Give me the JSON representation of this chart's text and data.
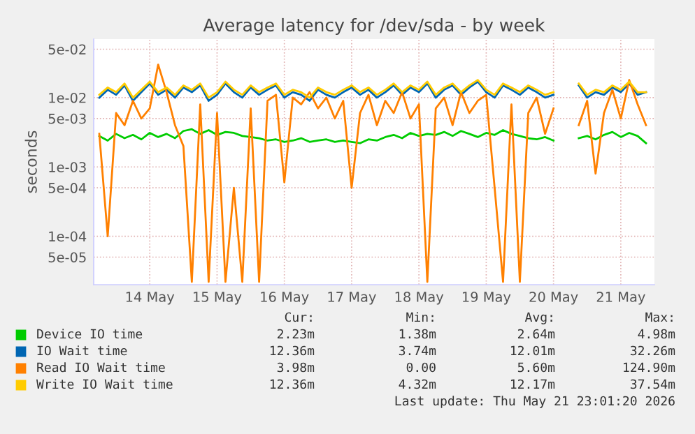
{
  "chart_data": {
    "type": "line",
    "title": "Average latency for /dev/sda - by week",
    "ylabel": "seconds",
    "x": [
      "2026-05-13T18:00",
      "2026-05-13T21:00",
      "2026-05-14T00:00",
      "2026-05-14T03:00",
      "2026-05-14T06:00",
      "2026-05-14T09:00",
      "2026-05-14T12:00",
      "2026-05-14T15:00",
      "2026-05-14T18:00",
      "2026-05-14T21:00",
      "2026-05-15T00:00",
      "2026-05-15T03:00",
      "2026-05-15T06:00",
      "2026-05-15T09:00",
      "2026-05-15T12:00",
      "2026-05-15T15:00",
      "2026-05-15T18:00",
      "2026-05-15T21:00",
      "2026-05-16T00:00",
      "2026-05-16T03:00",
      "2026-05-16T06:00",
      "2026-05-16T09:00",
      "2026-05-16T12:00",
      "2026-05-16T15:00",
      "2026-05-16T18:00",
      "2026-05-16T21:00",
      "2026-05-17T00:00",
      "2026-05-17T03:00",
      "2026-05-17T06:00",
      "2026-05-17T09:00",
      "2026-05-17T12:00",
      "2026-05-17T15:00",
      "2026-05-17T18:00",
      "2026-05-17T21:00",
      "2026-05-18T00:00",
      "2026-05-18T03:00",
      "2026-05-18T06:00",
      "2026-05-18T09:00",
      "2026-05-18T12:00",
      "2026-05-18T15:00",
      "2026-05-18T18:00",
      "2026-05-18T21:00",
      "2026-05-19T00:00",
      "2026-05-19T03:00",
      "2026-05-19T06:00",
      "2026-05-19T09:00",
      "2026-05-19T12:00",
      "2026-05-19T15:00",
      "2026-05-19T18:00",
      "2026-05-19T21:00",
      "2026-05-20T00:00",
      "2026-05-20T03:00",
      "2026-05-20T06:00",
      "2026-05-20T09:00",
      "2026-05-20T12:00",
      "2026-05-20T15:00",
      "2026-05-20T18:00",
      "2026-05-20T21:00",
      "2026-05-21T00:00",
      "2026-05-21T03:00",
      "2026-05-21T06:00",
      "2026-05-21T09:00",
      "2026-05-21T12:00",
      "2026-05-21T15:00",
      "2026-05-21T18:00",
      "2026-05-21T21:00"
    ],
    "series": [
      {
        "name": "Device IO time",
        "color": "#00cc00",
        "values": [
          0.0028,
          0.0024,
          0.003,
          0.0026,
          0.0029,
          0.0025,
          0.0031,
          0.0027,
          0.003,
          0.0026,
          0.0033,
          0.0035,
          0.003,
          0.0034,
          0.0029,
          0.0032,
          0.0031,
          0.0028,
          0.0027,
          0.0026,
          0.0024,
          0.0025,
          0.0023,
          0.0024,
          0.0026,
          0.0023,
          0.0024,
          0.0025,
          0.0023,
          0.0024,
          0.0023,
          0.0022,
          0.0025,
          0.0024,
          0.0027,
          0.0029,
          0.0026,
          0.0031,
          0.0028,
          0.003,
          0.0029,
          0.0032,
          0.0028,
          0.0033,
          0.003,
          0.0027,
          0.0031,
          0.0029,
          0.0034,
          0.003,
          0.0028,
          0.0026,
          0.0025,
          0.0027,
          0.0024,
          null,
          null,
          0.0026,
          0.0028,
          0.0025,
          0.0029,
          0.0032,
          0.0027,
          0.0031,
          0.0028,
          0.0022
        ]
      },
      {
        "name": "IO Wait time",
        "color": "#0066b3",
        "values": [
          0.01,
          0.013,
          0.011,
          0.015,
          0.009,
          0.012,
          0.016,
          0.011,
          0.013,
          0.01,
          0.014,
          0.012,
          0.015,
          0.009,
          0.011,
          0.016,
          0.012,
          0.01,
          0.014,
          0.011,
          0.013,
          0.015,
          0.01,
          0.012,
          0.011,
          0.009,
          0.013,
          0.011,
          0.01,
          0.012,
          0.014,
          0.011,
          0.013,
          0.01,
          0.012,
          0.015,
          0.011,
          0.014,
          0.012,
          0.016,
          0.01,
          0.013,
          0.015,
          0.011,
          0.014,
          0.017,
          0.012,
          0.01,
          0.015,
          0.013,
          0.011,
          0.014,
          0.012,
          0.01,
          0.011,
          null,
          null,
          0.015,
          0.01,
          0.012,
          0.011,
          0.014,
          0.012,
          0.016,
          0.011,
          0.012
        ]
      },
      {
        "name": "Read IO Wait time",
        "color": "#ff8000",
        "values": [
          0.003,
          0.0001,
          0.006,
          0.004,
          0.009,
          0.005,
          0.007,
          0.03,
          0.012,
          0.004,
          0.002,
          2.2e-05,
          0.008,
          2.2e-05,
          0.006,
          2.2e-05,
          0.0005,
          2.2e-05,
          0.007,
          2.2e-05,
          0.009,
          0.011,
          0.0006,
          0.01,
          0.008,
          0.012,
          0.007,
          0.01,
          0.005,
          0.009,
          0.0005,
          0.006,
          0.011,
          0.004,
          0.009,
          0.006,
          0.012,
          0.005,
          0.008,
          2.2e-05,
          0.007,
          0.01,
          0.004,
          0.012,
          0.006,
          0.009,
          0.011,
          0.0005,
          2.2e-05,
          0.008,
          2.2e-05,
          0.006,
          0.01,
          0.003,
          0.007,
          null,
          null,
          0.004,
          0.009,
          0.0008,
          0.006,
          0.013,
          0.005,
          0.018,
          0.008,
          0.004
        ]
      },
      {
        "name": "Write IO Wait time",
        "color": "#ffcc00",
        "values": [
          0.011,
          0.014,
          0.012,
          0.016,
          0.01,
          0.013,
          0.017,
          0.012,
          0.014,
          0.011,
          0.015,
          0.013,
          0.016,
          0.01,
          0.012,
          0.017,
          0.013,
          0.011,
          0.015,
          0.012,
          0.014,
          0.016,
          0.011,
          0.013,
          0.012,
          0.01,
          0.014,
          0.012,
          0.011,
          0.013,
          0.015,
          0.012,
          0.014,
          0.011,
          0.013,
          0.016,
          0.012,
          0.015,
          0.013,
          0.017,
          0.011,
          0.014,
          0.016,
          0.012,
          0.015,
          0.018,
          0.013,
          0.011,
          0.016,
          0.014,
          0.012,
          0.015,
          0.013,
          0.011,
          0.012,
          null,
          null,
          0.016,
          0.011,
          0.013,
          0.012,
          0.015,
          0.013,
          0.017,
          0.012,
          0.012
        ]
      }
    ],
    "log": "y",
    "ylim": [
      2e-05,
      0.07
    ],
    "yticks": [
      {
        "value": 5e-05,
        "label": "5e-05"
      },
      {
        "value": 0.0001,
        "label": "1e-04"
      },
      {
        "value": 0.0005,
        "label": "5e-04"
      },
      {
        "value": 0.001,
        "label": "1e-03"
      },
      {
        "value": 0.005,
        "label": "5e-03"
      },
      {
        "value": 0.01,
        "label": "1e-02"
      },
      {
        "value": 0.05,
        "label": "5e-02"
      }
    ],
    "xlim": [
      "2026-05-13T16:00",
      "2026-05-22T00:00"
    ],
    "xticks": [
      {
        "value": "2026-05-14T12:00",
        "label": "14 May"
      },
      {
        "value": "2026-05-15T12:00",
        "label": "15 May"
      },
      {
        "value": "2026-05-16T12:00",
        "label": "16 May"
      },
      {
        "value": "2026-05-17T12:00",
        "label": "17 May"
      },
      {
        "value": "2026-05-18T12:00",
        "label": "18 May"
      },
      {
        "value": "2026-05-19T12:00",
        "label": "19 May"
      },
      {
        "value": "2026-05-20T12:00",
        "label": "20 May"
      },
      {
        "value": "2026-05-21T12:00",
        "label": "21 May"
      }
    ],
    "grid": true,
    "legend": "bottom",
    "marker": "none",
    "line_style": "solid",
    "annotations": [
      "Cur:",
      "Min:",
      "Avg:",
      "Max:",
      "2.23m",
      "1.38m",
      "2.64m",
      "4.98m",
      "12.36m",
      "3.74m",
      "12.01m",
      "32.26m",
      "3.98m",
      "0.00",
      "5.60m",
      "124.90m",
      "12.36m",
      "4.32m",
      "12.17m",
      "37.54m",
      "Last update: Thu May 21 23:01:20 2026"
    ]
  }
}
